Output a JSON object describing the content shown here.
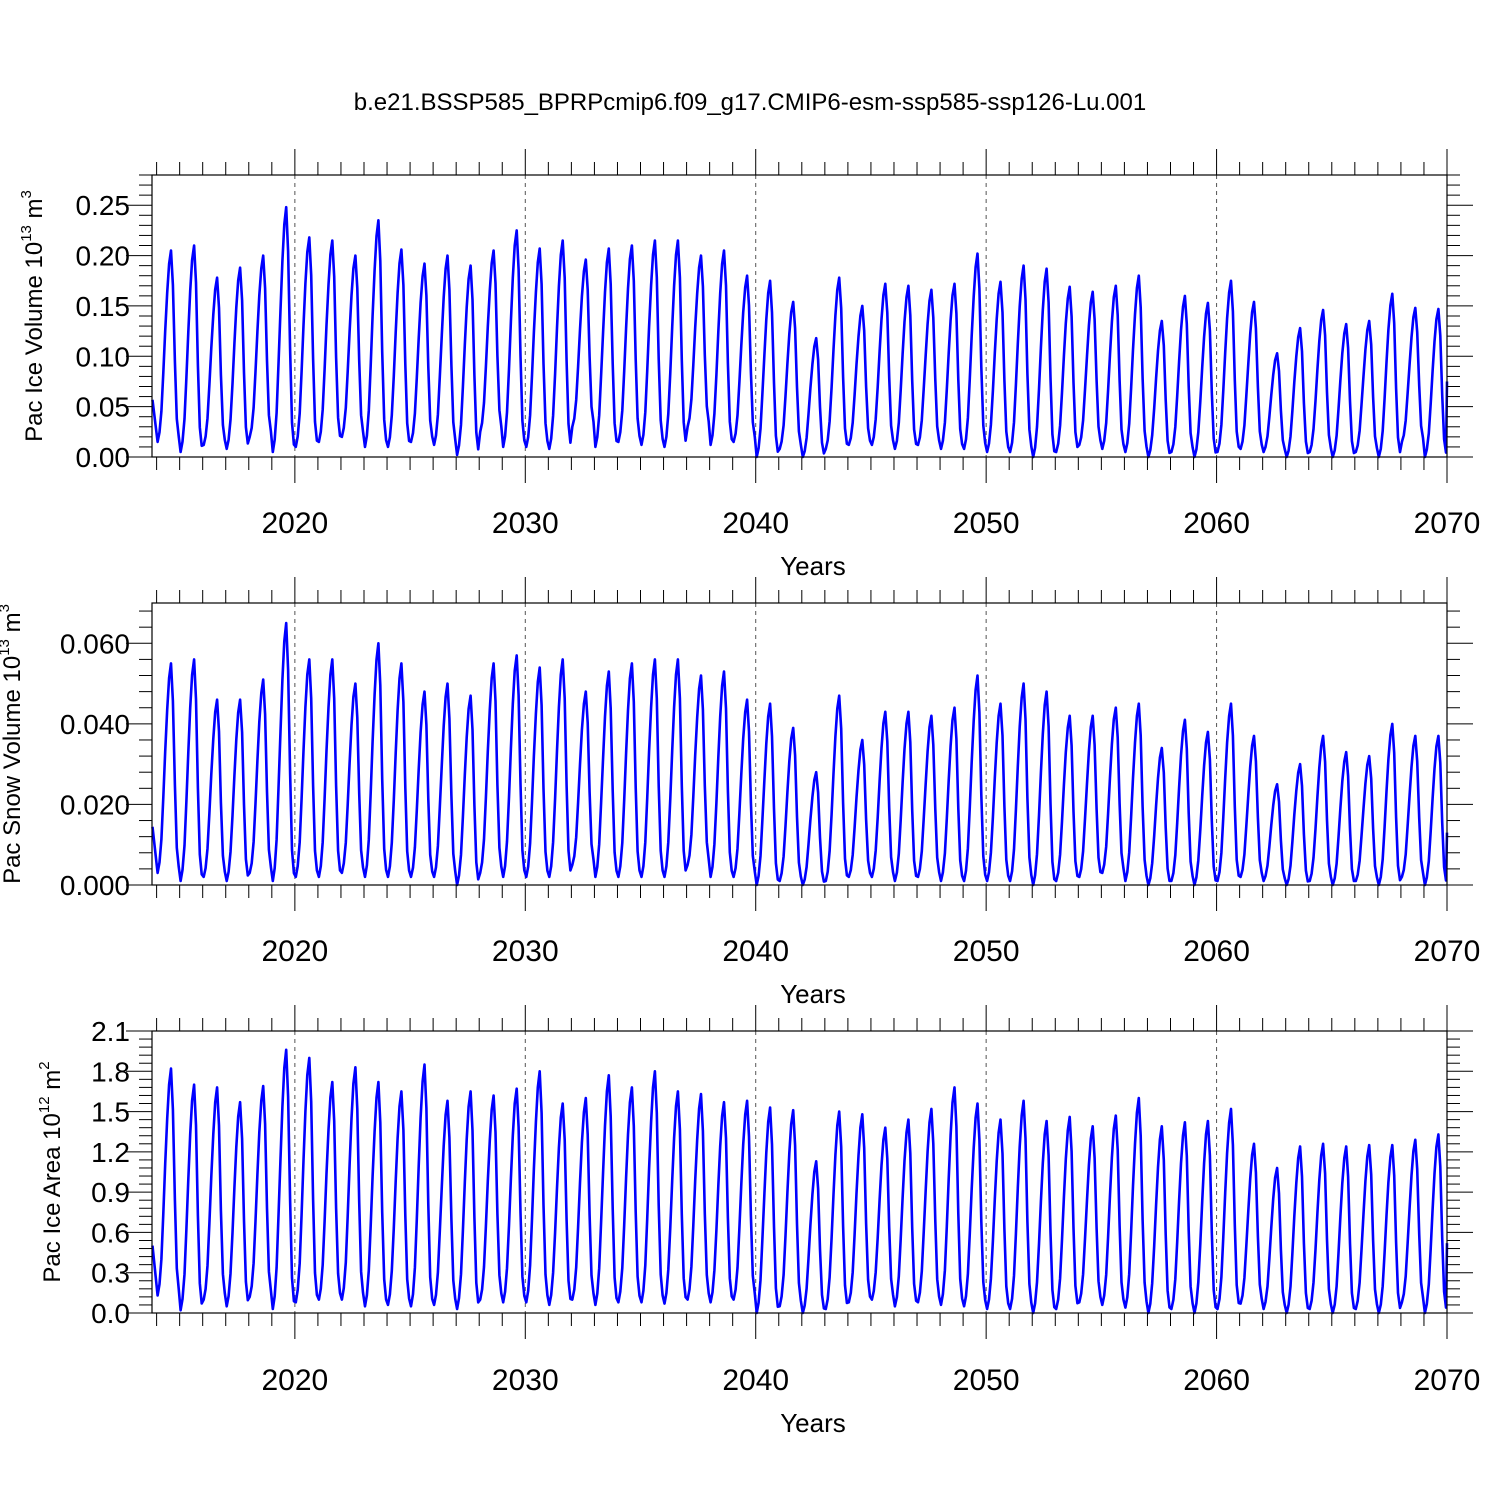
{
  "figure_title": "b.e21.BSSP585_BPRPcmip6.f09_g17.CMIP6-esm-ssp585-ssp126-Lu.001",
  "colors": {
    "series": "#0000ff",
    "axis": "#000000",
    "grid": "#555555"
  },
  "chart_data": [
    {
      "type": "line",
      "title": "",
      "xlabel": "Years",
      "ylabel_parts": {
        "pre": "Pac Ice Volume 10",
        "exp": "13",
        "unit": " m",
        "unit_exp": "3"
      },
      "xlim": [
        2013.8,
        2070.0
      ],
      "ylim": [
        0.0,
        0.28
      ],
      "x_ticks": [
        2020,
        2030,
        2040,
        2050,
        2060,
        2070
      ],
      "x_tick_labels": [
        "2020",
        "2030",
        "2040",
        "2050",
        "2060",
        "2070"
      ],
      "y_ticks": [
        0.0,
        0.05,
        0.1,
        0.15,
        0.2,
        0.25
      ],
      "y_tick_labels": [
        "0.00",
        "0.05",
        "0.10",
        "0.15",
        "0.20",
        "0.25"
      ],
      "grid": "dashed vertical lines at decades",
      "series": [
        {
          "name": "Pac Ice Volume",
          "start_year": 2014,
          "minima": [
            0.015,
            0.005,
            0.012,
            0.008,
            0.02,
            0.005,
            0.01,
            0.015,
            0.02,
            0.01,
            0.01,
            0.015,
            0.012,
            0.002,
            0.025,
            0.01,
            0.01,
            0.008,
            0.03,
            0.01,
            0.015,
            0.012,
            0.01,
            0.03,
            0.012,
            0.015,
            0.0,
            0.008,
            0.0,
            0.008,
            0.012,
            0.012,
            0.008,
            0.012,
            0.008,
            0.008,
            0.005,
            0.005,
            0.0,
            0.005,
            0.012,
            0.008,
            0.005,
            0.0,
            0.005,
            0.0,
            0.005,
            0.008,
            0.005,
            0.0,
            0.005,
            0.0,
            0.005,
            0.0,
            0.015,
            0.0
          ],
          "maxima": [
            0.205,
            0.21,
            0.178,
            0.188,
            0.2,
            0.248,
            0.218,
            0.215,
            0.2,
            0.235,
            0.206,
            0.192,
            0.2,
            0.19,
            0.205,
            0.225,
            0.207,
            0.215,
            0.196,
            0.207,
            0.21,
            0.215,
            0.215,
            0.2,
            0.205,
            0.18,
            0.175,
            0.154,
            0.118,
            0.178,
            0.15,
            0.172,
            0.17,
            0.166,
            0.172,
            0.202,
            0.174,
            0.19,
            0.187,
            0.169,
            0.164,
            0.17,
            0.18,
            0.135,
            0.16,
            0.153,
            0.175,
            0.154,
            0.103,
            0.128,
            0.146,
            0.132,
            0.135,
            0.162,
            0.148,
            0.147
          ],
          "end_value": 0.075
        }
      ]
    },
    {
      "type": "line",
      "title": "",
      "xlabel": "Years",
      "ylabel_parts": {
        "pre": "Pac Snow Volume 10",
        "exp": "13",
        "unit": " m",
        "unit_exp": "3"
      },
      "xlim": [
        2013.8,
        2070.0
      ],
      "ylim": [
        0.0,
        0.07
      ],
      "x_ticks": [
        2020,
        2030,
        2040,
        2050,
        2060,
        2070
      ],
      "x_tick_labels": [
        "2020",
        "2030",
        "2040",
        "2050",
        "2060",
        "2070"
      ],
      "y_ticks": [
        0.0,
        0.02,
        0.04,
        0.06
      ],
      "y_tick_labels": [
        "0.000",
        "0.020",
        "0.040",
        "0.060"
      ],
      "grid": "dashed vertical lines at decades",
      "series": [
        {
          "name": "Pac Snow Volume",
          "start_year": 2014,
          "minima": [
            0.003,
            0.001,
            0.002,
            0.001,
            0.003,
            0.001,
            0.002,
            0.002,
            0.003,
            0.002,
            0.002,
            0.002,
            0.002,
            0.0,
            0.003,
            0.002,
            0.002,
            0.002,
            0.005,
            0.002,
            0.002,
            0.002,
            0.002,
            0.005,
            0.002,
            0.002,
            0.0,
            0.001,
            0.0,
            0.001,
            0.002,
            0.002,
            0.001,
            0.002,
            0.001,
            0.001,
            0.001,
            0.001,
            0.0,
            0.001,
            0.002,
            0.003,
            0.001,
            0.0,
            0.001,
            0.0,
            0.001,
            0.002,
            0.001,
            0.0,
            0.001,
            0.0,
            0.001,
            0.0,
            0.002,
            0.0
          ],
          "maxima": [
            0.055,
            0.056,
            0.046,
            0.046,
            0.051,
            0.065,
            0.056,
            0.056,
            0.05,
            0.06,
            0.055,
            0.048,
            0.05,
            0.047,
            0.055,
            0.057,
            0.054,
            0.056,
            0.048,
            0.053,
            0.055,
            0.056,
            0.056,
            0.052,
            0.053,
            0.046,
            0.045,
            0.039,
            0.028,
            0.047,
            0.036,
            0.043,
            0.043,
            0.042,
            0.044,
            0.052,
            0.045,
            0.05,
            0.048,
            0.042,
            0.042,
            0.044,
            0.045,
            0.034,
            0.041,
            0.038,
            0.045,
            0.037,
            0.025,
            0.03,
            0.037,
            0.033,
            0.032,
            0.04,
            0.037,
            0.037
          ],
          "end_value": 0.013
        }
      ]
    },
    {
      "type": "line",
      "title": "",
      "xlabel": "Years",
      "ylabel_parts": {
        "pre": "Pac Ice Area 10",
        "exp": "12",
        "unit": " m",
        "unit_exp": "2"
      },
      "xlim": [
        2013.8,
        2070.0
      ],
      "ylim": [
        0.0,
        2.1
      ],
      "x_ticks": [
        2020,
        2030,
        2040,
        2050,
        2060,
        2070
      ],
      "x_tick_labels": [
        "2020",
        "2030",
        "2040",
        "2050",
        "2060",
        "2070"
      ],
      "y_ticks": [
        0.0,
        0.3,
        0.6,
        0.9,
        1.2,
        1.5,
        1.8,
        2.1
      ],
      "y_tick_labels": [
        "0.0",
        "0.3",
        "0.6",
        "0.9",
        "1.2",
        "1.5",
        "1.8",
        "2.1"
      ],
      "grid": "dashed vertical lines at decades",
      "series": [
        {
          "name": "Pac Ice Area",
          "start_year": 2014,
          "minima": [
            0.13,
            0.02,
            0.1,
            0.05,
            0.12,
            0.03,
            0.08,
            0.1,
            0.1,
            0.05,
            0.06,
            0.05,
            0.06,
            0.03,
            0.1,
            0.08,
            0.08,
            0.06,
            0.1,
            0.06,
            0.08,
            0.08,
            0.07,
            0.1,
            0.08,
            0.1,
            0.0,
            0.05,
            0.0,
            0.03,
            0.08,
            0.1,
            0.05,
            0.08,
            0.06,
            0.05,
            0.03,
            0.03,
            0.0,
            0.03,
            0.08,
            0.06,
            0.04,
            0.0,
            0.03,
            0.0,
            0.03,
            0.07,
            0.03,
            0.0,
            0.03,
            0.0,
            0.03,
            0.0,
            0.08,
            0.0
          ],
          "maxima": [
            1.82,
            1.7,
            1.68,
            1.57,
            1.69,
            1.96,
            1.9,
            1.72,
            1.83,
            1.72,
            1.65,
            1.85,
            1.58,
            1.65,
            1.62,
            1.67,
            1.8,
            1.56,
            1.6,
            1.77,
            1.68,
            1.8,
            1.65,
            1.63,
            1.57,
            1.58,
            1.53,
            1.51,
            1.13,
            1.5,
            1.48,
            1.38,
            1.44,
            1.52,
            1.68,
            1.56,
            1.44,
            1.58,
            1.43,
            1.46,
            1.39,
            1.47,
            1.6,
            1.39,
            1.42,
            1.43,
            1.52,
            1.26,
            1.08,
            1.24,
            1.26,
            1.24,
            1.25,
            1.25,
            1.29,
            1.33
          ],
          "end_value": 0.52
        }
      ]
    }
  ]
}
